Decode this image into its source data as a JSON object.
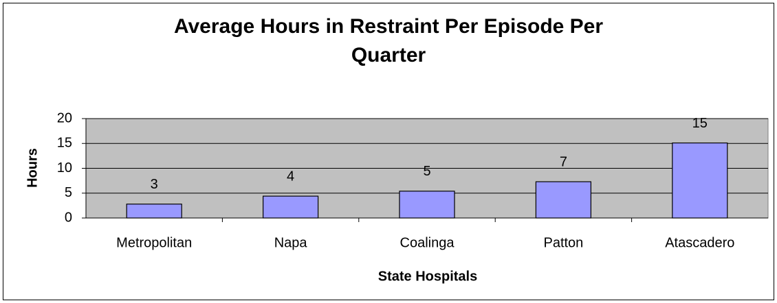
{
  "chart_data": {
    "type": "bar",
    "title": "Average Hours in Restraint Per Episode Per Quarter",
    "x_label": "State Hospitals",
    "y_label": "Hours",
    "categories": [
      "Metropolitan",
      "Napa",
      "Coalinga",
      "Patton",
      "Atascadero"
    ],
    "values": [
      2.8,
      4.4,
      5.4,
      7.3,
      15.1
    ],
    "value_labels": [
      "3",
      "4",
      "5",
      "7",
      "15"
    ],
    "color": "#9999ff",
    "ylim": [
      0,
      20
    ],
    "yticks": [
      0,
      5,
      10,
      15,
      20
    ],
    "grid": true
  }
}
